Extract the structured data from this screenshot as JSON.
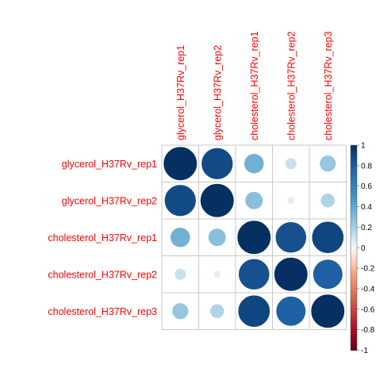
{
  "chart_data": {
    "type": "heatmap",
    "subtype": "correlation-circles",
    "labels": [
      "glycerol_H37Rv_rep1",
      "glycerol_H37Rv_rep2",
      "cholesterol_H37Rv_rep1",
      "cholesterol_H37Rv_rep2",
      "cholesterol_H37Rv_rep3"
    ],
    "matrix": [
      [
        1.0,
        0.88,
        0.35,
        0.12,
        0.24
      ],
      [
        0.88,
        1.0,
        0.28,
        0.05,
        0.18
      ],
      [
        0.35,
        0.28,
        1.0,
        0.85,
        0.9
      ],
      [
        0.12,
        0.05,
        0.85,
        1.0,
        0.78
      ],
      [
        0.24,
        0.18,
        0.9,
        0.78,
        1.0
      ]
    ],
    "colorbar": {
      "range": [
        -1,
        1
      ],
      "ticks": [
        "1",
        "0.8",
        "0.6",
        "0.4",
        "0.2",
        "0",
        "-0.2",
        "-0.4",
        "-0.6",
        "-0.8",
        "-1"
      ]
    },
    "label_color": "#ff0000",
    "colors": {
      "negative_dark": "#67001f",
      "neutral": "#f7f7f7",
      "positive_dark": "#053061"
    },
    "grid": true
  }
}
